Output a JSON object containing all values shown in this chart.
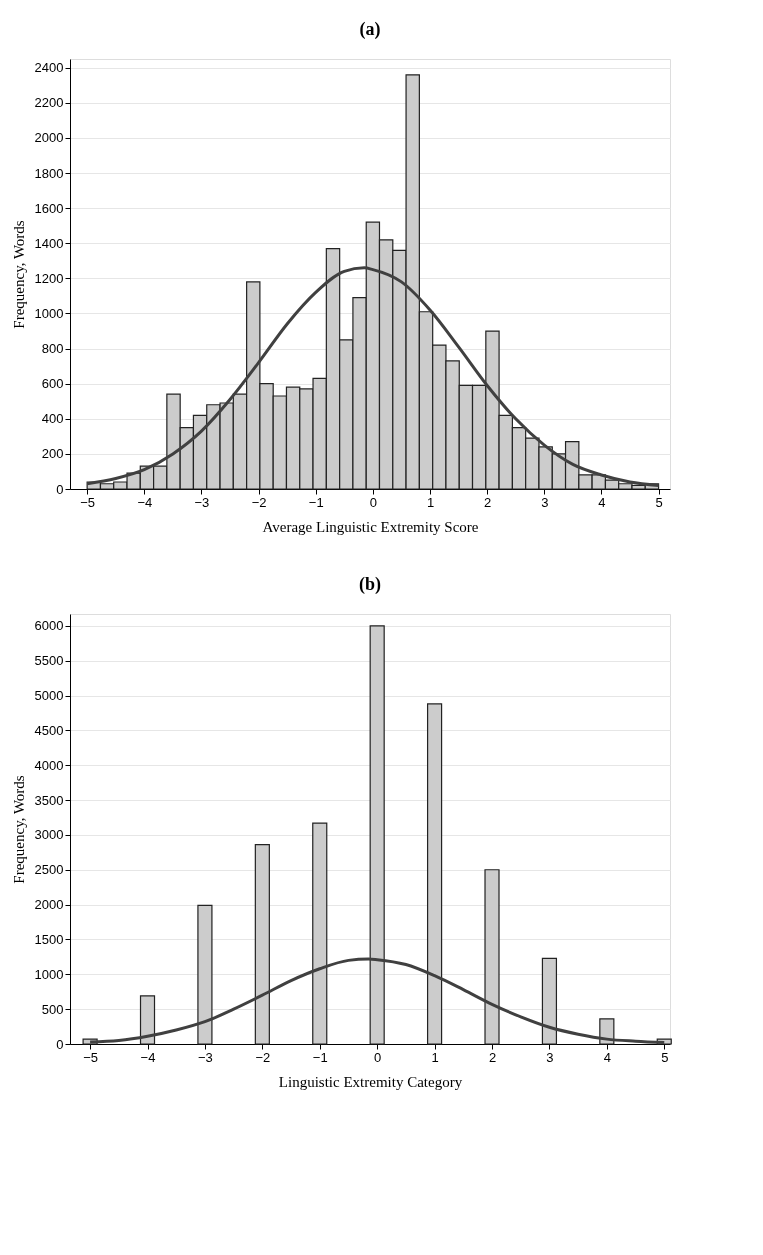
{
  "chart_data": [
    {
      "type": "histogram",
      "title": "(a)",
      "xlabel": "Average Linguistic Extremity Score",
      "ylabel": "Frequency, Words",
      "xlim": [
        -5.3,
        5.2
      ],
      "xticks": [
        -5,
        -4,
        -3,
        -2,
        -1,
        0,
        1,
        2,
        3,
        4,
        5
      ],
      "ylim": [
        0,
        2450
      ],
      "yticks": [
        0,
        200,
        400,
        600,
        800,
        1000,
        1200,
        1400,
        1600,
        1800,
        2000,
        2200,
        2400
      ],
      "grid": "y",
      "series": [
        {
          "color": "#cccccc",
          "bins": [
            -5.0,
            -4.767,
            -4.535,
            -4.302,
            -4.07,
            -3.837,
            -3.605,
            -3.372,
            -3.14,
            -2.907,
            -2.674,
            -2.442,
            -2.209,
            -1.977,
            -1.744,
            -1.512,
            -1.279,
            -1.047,
            -0.814,
            -0.581,
            -0.349,
            -0.116,
            0.116,
            0.349,
            0.581,
            0.814,
            1.047,
            1.279,
            1.512,
            1.744,
            1.977,
            2.209,
            2.442,
            2.674,
            2.907,
            3.14,
            3.372,
            3.605,
            3.837,
            4.07,
            4.302,
            4.535,
            4.767,
            5.0
          ],
          "values": [
            40,
            30,
            40,
            90,
            130,
            130,
            540,
            350,
            420,
            480,
            490,
            540,
            1180,
            600,
            530,
            580,
            570,
            630,
            1370,
            850,
            1090,
            1520,
            1420,
            1360,
            2360,
            1010,
            820,
            730,
            590,
            590,
            900,
            420,
            350,
            290,
            240,
            200,
            270,
            80,
            80,
            50,
            30,
            20,
            30
          ]
        },
        {
          "type": "line",
          "color": "#404040",
          "x": [
            -5,
            -4.5,
            -4,
            -3.5,
            -3,
            -2.5,
            -2,
            -1.5,
            -1,
            -0.5,
            -0.15,
            0,
            0.5,
            1,
            1.5,
            2,
            2.5,
            3,
            3.5,
            4,
            4.5,
            5
          ],
          "values": [
            30,
            60,
            110,
            200,
            330,
            510,
            720,
            940,
            1120,
            1240,
            1260,
            1250,
            1180,
            1020,
            810,
            590,
            400,
            250,
            140,
            80,
            40,
            20
          ]
        }
      ]
    },
    {
      "type": "bar",
      "title": "(b)",
      "xlabel": "Linguistic Extremity Category",
      "ylabel": "Frequency, Words",
      "xlim": [
        -5.35,
        5.1
      ],
      "xticks": [
        -5,
        -4,
        -3,
        -2,
        -1,
        0,
        1,
        2,
        3,
        4,
        5
      ],
      "ylim": [
        0,
        6170
      ],
      "yticks": [
        0,
        500,
        1000,
        1500,
        2000,
        2500,
        3000,
        3500,
        4000,
        4500,
        5000,
        5500,
        6000
      ],
      "grid": "y",
      "series": [
        {
          "color": "#cccccc",
          "x": [
            -5,
            -4,
            -3,
            -2,
            -1,
            0,
            1,
            2,
            3,
            4,
            5
          ],
          "values": [
            70,
            690,
            1990,
            2860,
            3170,
            6000,
            4880,
            2500,
            1230,
            360,
            70
          ]
        },
        {
          "type": "line",
          "color": "#404040",
          "x": [
            -5,
            -4.5,
            -4,
            -3.5,
            -3,
            -2.5,
            -2,
            -1.5,
            -1,
            -0.5,
            -0.15,
            0,
            0.5,
            1,
            1.5,
            2,
            2.5,
            3,
            3.5,
            4,
            4.5,
            5
          ],
          "values": [
            30,
            50,
            110,
            200,
            320,
            500,
            700,
            910,
            1080,
            1200,
            1220,
            1210,
            1140,
            980,
            780,
            570,
            390,
            240,
            140,
            70,
            40,
            20
          ]
        }
      ]
    }
  ]
}
